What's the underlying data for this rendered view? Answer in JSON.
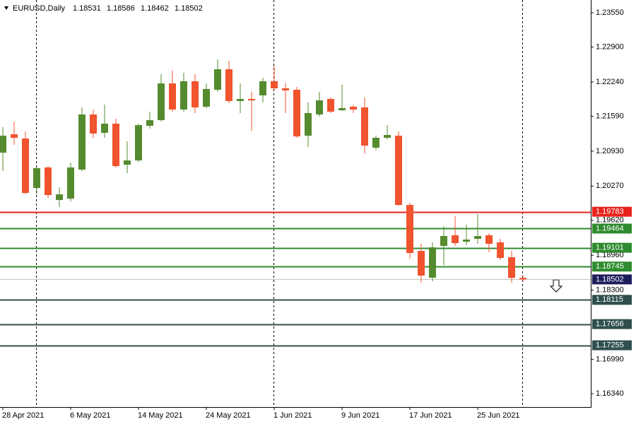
{
  "chart_data": {
    "type": "candlestick",
    "title": "EURUSD,Daily",
    "categories": [
      "28 Apr 2021",
      null,
      null,
      null,
      null,
      null,
      "6 May 2021",
      null,
      null,
      null,
      null,
      null,
      "14 May 2021",
      null,
      null,
      null,
      null,
      null,
      "24 May 2021",
      null,
      null,
      null,
      null,
      null,
      "1 Jun 2021",
      null,
      null,
      null,
      null,
      null,
      "9 Jun 2021",
      null,
      null,
      null,
      null,
      null,
      "17 Jun 2021",
      null,
      null,
      null,
      null,
      null,
      "25 Jun 2021",
      null,
      null,
      null,
      null
    ],
    "open": [
      1.20901,
      1.21249,
      1.21169,
      1.20233,
      1.20621,
      1.20005,
      1.20032,
      1.20581,
      1.21624,
      1.21276,
      1.2145,
      1.20674,
      1.20754,
      1.2141,
      1.21517,
      1.22212,
      1.21718,
      1.22253,
      1.21771,
      1.22092,
      1.2248,
      1.21878,
      1.21918,
      1.21985,
      1.22253,
      1.22119,
      1.22092,
      1.21223,
      1.21624,
      1.21918,
      1.21704,
      1.21771,
      1.21758,
      1.20995,
      1.21183,
      1.21223,
      1.19911,
      1.19042,
      1.18534,
      1.19136,
      1.19337,
      1.19216,
      1.1927,
      1.19337,
      1.19203,
      1.18922,
      1.18531
    ],
    "high": [
      1.21383,
      1.2149,
      1.21303,
      1.20621,
      1.20647,
      1.20246,
      1.20714,
      1.21758,
      1.21718,
      1.21811,
      1.21544,
      1.21116,
      1.2145,
      1.21677,
      1.22386,
      1.22453,
      1.22413,
      1.22386,
      1.22212,
      1.22667,
      1.22641,
      1.22212,
      1.22052,
      1.2232,
      1.22547,
      1.22212,
      1.22146,
      1.21851,
      1.22052,
      1.21945,
      1.22186,
      1.21811,
      1.21945,
      1.21223,
      1.21423,
      1.21303,
      1.19952,
      1.19176,
      1.19203,
      1.1951,
      1.19698,
      1.19537,
      1.19738,
      1.19377,
      1.1927,
      1.19042,
      1.18586
    ],
    "low": [
      1.20554,
      1.21049,
      1.20112,
      1.20112,
      1.20045,
      1.19871,
      1.19978,
      1.20554,
      1.21183,
      1.21183,
      1.20621,
      1.20514,
      1.20728,
      1.21356,
      1.2149,
      1.21677,
      1.21677,
      1.21651,
      1.21744,
      1.22052,
      1.21838,
      1.21651,
      1.21316,
      1.21851,
      1.22079,
      1.21651,
      1.21183,
      1.21009,
      1.21584,
      1.21651,
      1.21691,
      1.21651,
      1.20888,
      1.20955,
      1.21156,
      1.19898,
      1.18895,
      1.1844,
      1.18467,
      1.18775,
      1.19136,
      1.19149,
      1.19176,
      1.19015,
      1.18868,
      1.1844,
      1.18462
    ],
    "close": [
      1.21223,
      1.21183,
      1.20139,
      1.20607,
      1.20099,
      1.20112,
      1.20621,
      1.21624,
      1.21263,
      1.2145,
      1.20647,
      1.20754,
      1.21423,
      1.21517,
      1.22212,
      1.21718,
      1.22253,
      1.21758,
      1.22106,
      1.2248,
      1.21878,
      1.21918,
      1.21891,
      1.22253,
      1.22119,
      1.22079,
      1.21209,
      1.21651,
      1.21891,
      1.21677,
      1.21744,
      1.21718,
      1.21035,
      1.21183,
      1.21236,
      1.19911,
      1.19002,
      1.18574,
      1.19109,
      1.19323,
      1.19189,
      1.19256,
      1.19323,
      1.19176,
      1.18908,
      1.18531,
      1.18502
    ],
    "up_color": "#558b2f",
    "down_color": "#f0532d",
    "ylim": [
      1.16086,
      1.23791
    ],
    "yticks": [
      {
        "value": 1.2355,
        "label": "1.23550"
      },
      {
        "value": 1.229,
        "label": "1.22900"
      },
      {
        "value": 1.2224,
        "label": "1.22240"
      },
      {
        "value": 1.2159,
        "label": "1.21590"
      },
      {
        "value": 1.2093,
        "label": "1.20930"
      },
      {
        "value": 1.2027,
        "label": "1.20270"
      },
      {
        "value": 1.1962,
        "label": "1.19620"
      },
      {
        "value": 1.1896,
        "label": "1.18960"
      },
      {
        "value": 1.183,
        "label": "1.18300"
      },
      {
        "value": 1.1699,
        "label": "1.16990"
      },
      {
        "value": 1.1634,
        "label": "1.16340"
      }
    ],
    "levels": [
      {
        "value": 1.19783,
        "color": "#e8231c"
      },
      {
        "value": 1.19464,
        "color": "#2e8b2e"
      },
      {
        "value": 1.19101,
        "color": "#2e8b2e"
      },
      {
        "value": 1.18745,
        "color": "#2e8b2e"
      },
      {
        "value": 1.18115,
        "color": "#2f4f4f"
      },
      {
        "value": 1.17656,
        "color": "#2f4f4f"
      },
      {
        "value": 1.17255,
        "color": "#2f4f4f"
      }
    ],
    "current_price_color": "#1c1c5c"
  }
}
